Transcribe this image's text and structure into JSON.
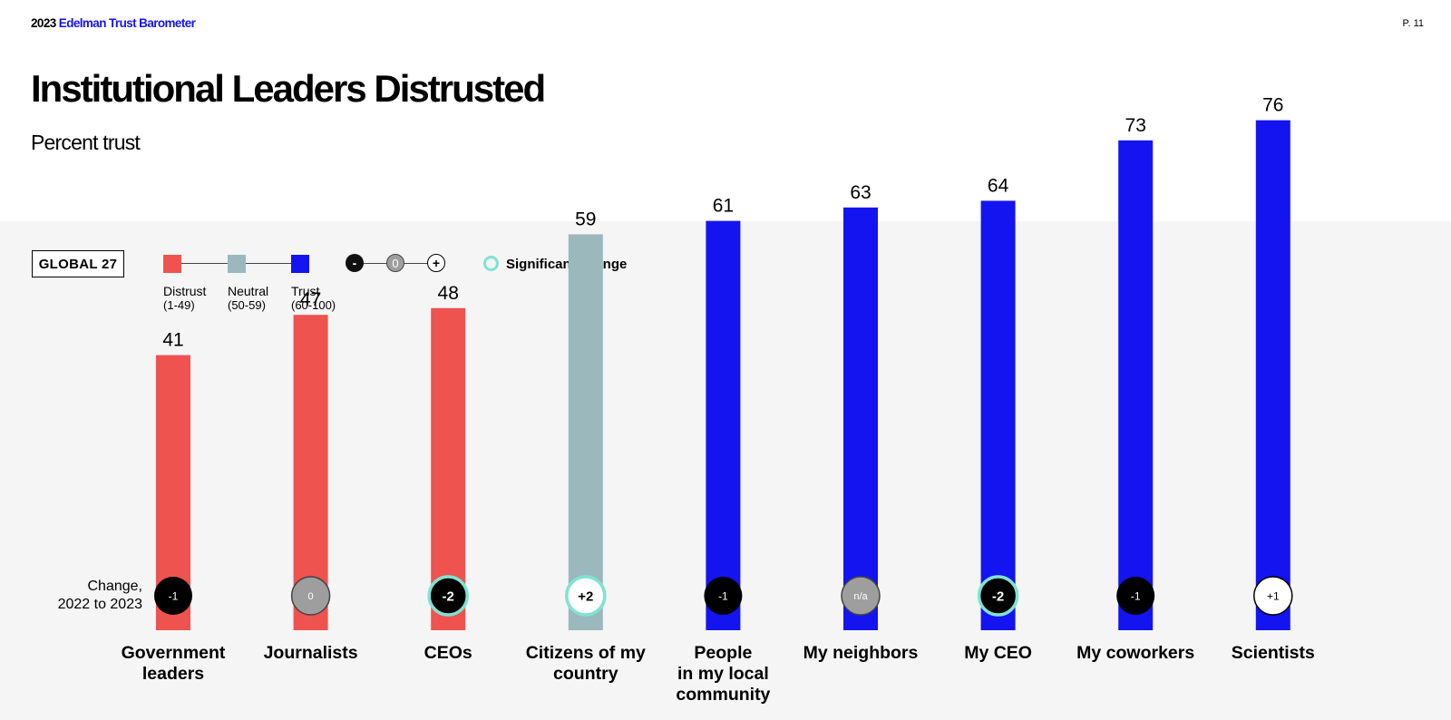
{
  "header": {
    "brand_year": "2023",
    "brand_name": "Edelman Trust Barometer",
    "page": "P. 11",
    "title": "Institutional Leaders Distrusted",
    "subtitle": "Percent trust"
  },
  "legend": {
    "global_label": "GLOBAL 27",
    "scale": [
      {
        "label": "Distrust",
        "range": "(1-49)",
        "color": "#ee534f"
      },
      {
        "label": "Neutral",
        "range": "(50-59)",
        "color": "#9bb8bd"
      },
      {
        "label": "Trust",
        "range": "(60-100)",
        "color": "#1414f0"
      }
    ],
    "change_symbols": {
      "minus": "-",
      "zero": "0",
      "plus": "+"
    },
    "significant_label": "Significant change",
    "significant_color": "#7fe3d2"
  },
  "change_row_label": [
    "Change,",
    "2022 to 2023"
  ],
  "chart_data": {
    "type": "bar",
    "title": "Institutional Leaders Distrusted",
    "subtitle": "Percent trust",
    "categories": [
      [
        "Government",
        "leaders"
      ],
      [
        "Journalists"
      ],
      [
        "CEOs"
      ],
      [
        "Citizens of my",
        "country"
      ],
      [
        "People",
        "in my local",
        "community"
      ],
      [
        "My neighbors"
      ],
      [
        "My CEO"
      ],
      [
        "My coworkers"
      ],
      [
        "Scientists"
      ]
    ],
    "values": [
      41,
      47,
      48,
      59,
      61,
      63,
      64,
      73,
      76
    ],
    "changes": [
      "-1",
      "0",
      "-2",
      "+2",
      "-1",
      "n/a",
      "-2",
      "-1",
      "+1"
    ],
    "significant": [
      false,
      false,
      true,
      true,
      false,
      false,
      true,
      false,
      false
    ],
    "bar_colors": [
      "#ee534f",
      "#ee534f",
      "#ee534f",
      "#9bb8bd",
      "#1414f0",
      "#1414f0",
      "#1414f0",
      "#1414f0",
      "#1414f0"
    ],
    "ylim": [
      0,
      100
    ]
  }
}
